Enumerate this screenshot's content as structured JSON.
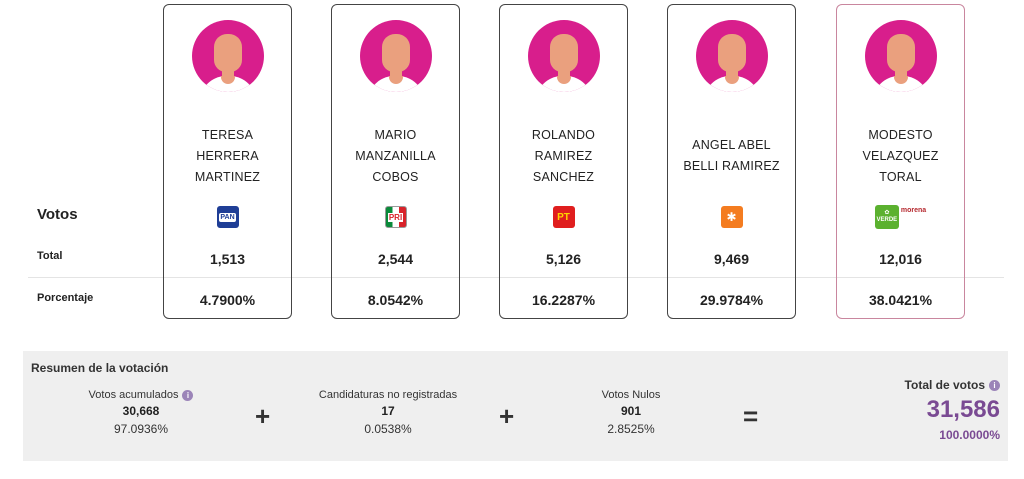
{
  "row_labels": {
    "votos": "Votos",
    "total": "Total",
    "porcentaje": "Porcentaje"
  },
  "candidates": [
    {
      "name": "TERESA HERRERA MARTINEZ",
      "party": "PAN",
      "party_icon": "pan-logo-icon",
      "total": "1,513",
      "percent": "4.7900%"
    },
    {
      "name": "MARIO MANZANILLA COBOS",
      "party": "PRI",
      "party_icon": "pri-logo-icon",
      "total": "2,544",
      "percent": "8.0542%"
    },
    {
      "name": "ROLANDO RAMIREZ SANCHEZ",
      "party": "PT",
      "party_icon": "pt-logo-icon",
      "total": "5,126",
      "percent": "16.2287%"
    },
    {
      "name": "ANGEL ABEL BELLI RAMIREZ",
      "party": "",
      "party_icon": "movimiento-ciudadano-logo-icon",
      "total": "9,469",
      "percent": "29.9784%"
    },
    {
      "name": "MODESTO VELAZQUEZ TORAL",
      "party": "VERDE",
      "party2": "morena",
      "party_icon": "verde-morena-logo-icon",
      "total": "12,016",
      "percent": "38.0421%"
    }
  ],
  "summary": {
    "title": "Resumen de la votación",
    "acumulados": {
      "label": "Votos acumulados",
      "value": "30,668",
      "percent": "97.0936%"
    },
    "no_registradas": {
      "label": "Candidaturas no registradas",
      "value": "17",
      "percent": "0.0538%"
    },
    "nulos": {
      "label": "Votos Nulos",
      "value": "901",
      "percent": "2.8525%"
    },
    "total": {
      "label": "Total de votos",
      "value": "31,586",
      "percent": "100.0000%"
    },
    "plus": "+",
    "equals": "=",
    "info": "i"
  },
  "colors": {
    "avatar_bg": "#d81e8c",
    "accent_purple": "#7a4a93",
    "winner_border": "#c9869e",
    "info_icon": "#9b84b8"
  }
}
